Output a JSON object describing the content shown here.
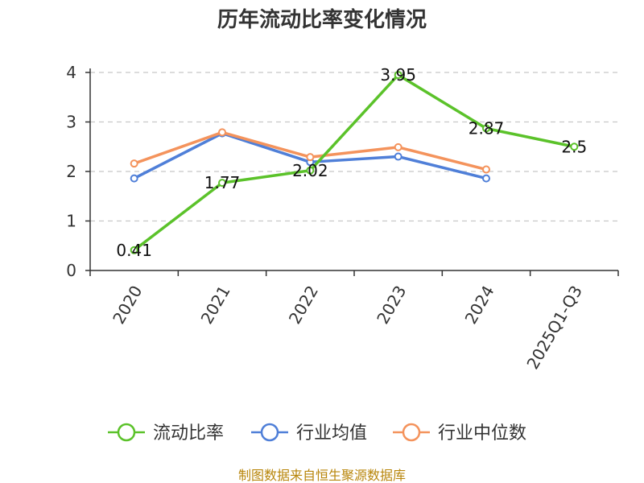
{
  "chart_data": {
    "type": "line",
    "title": "历年流动比率变化情况",
    "categories": [
      "2020",
      "2021",
      "2022",
      "2023",
      "2024",
      "2025Q1-Q3"
    ],
    "ylim": [
      0,
      4
    ],
    "yticks": [
      0,
      1,
      2,
      3,
      4
    ],
    "grid": true,
    "legend_position": "bottom",
    "series": [
      {
        "name": "流动比率",
        "color": "#5bc22a",
        "values": [
          0.41,
          1.77,
          2.02,
          3.95,
          2.87,
          2.5
        ],
        "labels": [
          "0.41",
          "1.77",
          "2.02",
          "3.95",
          "2.87",
          "2.5"
        ]
      },
      {
        "name": "行业均值",
        "color": "#4f7fd8",
        "values": [
          1.86,
          2.77,
          2.19,
          2.3,
          1.86,
          null
        ]
      },
      {
        "name": "行业中位数",
        "color": "#f4935c",
        "values": [
          2.16,
          2.79,
          2.29,
          2.49,
          2.04,
          null
        ]
      }
    ]
  },
  "footer": {
    "source": "制图数据来自恒生聚源数据库"
  }
}
